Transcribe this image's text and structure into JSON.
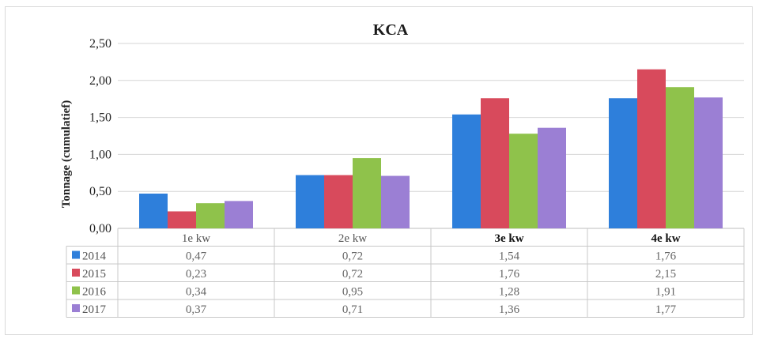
{
  "chart_data": {
    "type": "bar",
    "title": "KCA",
    "ylabel": "Tonnage (cumulatief)",
    "xlabel": "",
    "categories": [
      "1e kw",
      "2e kw",
      "3e kw",
      "4e kw"
    ],
    "y_tick_labels": [
      "0,00",
      "0,50",
      "1,00",
      "1,50",
      "2,00",
      "2,50"
    ],
    "y_ticks": [
      0,
      0.5,
      1,
      1.5,
      2,
      2.5
    ],
    "ylim": [
      0,
      2.5
    ],
    "grid": true,
    "legend_placement": "data-table",
    "series": [
      {
        "name": "2014",
        "color": "#2e7fdb",
        "values": [
          0.47,
          0.72,
          1.54,
          1.76
        ],
        "labels": [
          "0,47",
          "0,72",
          "1,54",
          "1,76"
        ]
      },
      {
        "name": "2015",
        "color": "#d84a5c",
        "values": [
          0.23,
          0.72,
          1.76,
          2.15
        ],
        "labels": [
          "0,23",
          "0,72",
          "1,76",
          "2,15"
        ]
      },
      {
        "name": "2016",
        "color": "#8fc24b",
        "values": [
          0.34,
          0.95,
          1.28,
          1.91
        ],
        "labels": [
          "0,34",
          "0,95",
          "1,28",
          "1,91"
        ]
      },
      {
        "name": "2017",
        "color": "#9b7fd4",
        "values": [
          0.37,
          0.71,
          1.36,
          1.77
        ],
        "labels": [
          "0,37",
          "0,71",
          "1,36",
          "1,77"
        ]
      }
    ]
  }
}
